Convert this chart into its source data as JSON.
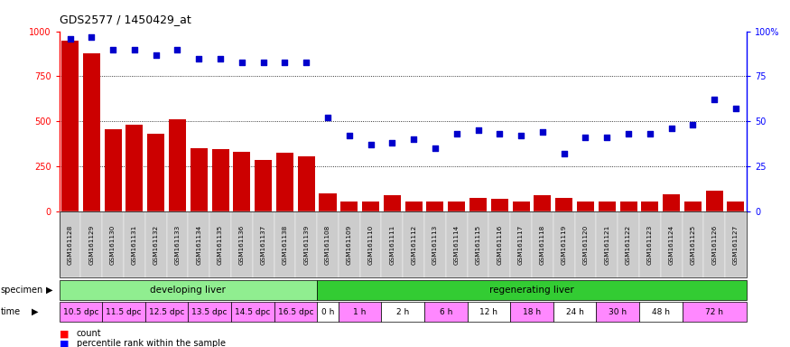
{
  "title": "GDS2577 / 1450429_at",
  "samples": [
    "GSM161128",
    "GSM161129",
    "GSM161130",
    "GSM161131",
    "GSM161132",
    "GSM161133",
    "GSM161134",
    "GSM161135",
    "GSM161136",
    "GSM161137",
    "GSM161138",
    "GSM161139",
    "GSM161108",
    "GSM161109",
    "GSM161110",
    "GSM161111",
    "GSM161112",
    "GSM161113",
    "GSM161114",
    "GSM161115",
    "GSM161116",
    "GSM161117",
    "GSM161118",
    "GSM161119",
    "GSM161120",
    "GSM161121",
    "GSM161122",
    "GSM161123",
    "GSM161124",
    "GSM161125",
    "GSM161126",
    "GSM161127"
  ],
  "counts": [
    950,
    880,
    455,
    480,
    430,
    510,
    350,
    345,
    330,
    285,
    325,
    305,
    100,
    55,
    55,
    90,
    55,
    55,
    55,
    75,
    70,
    55,
    90,
    75,
    55,
    55,
    55,
    55,
    95,
    55,
    115,
    55
  ],
  "percentile": [
    96,
    97,
    90,
    90,
    87,
    90,
    85,
    85,
    83,
    83,
    83,
    83,
    52,
    42,
    37,
    38,
    40,
    35,
    43,
    45,
    43,
    42,
    44,
    32,
    41,
    41,
    43,
    43,
    46,
    48,
    62,
    57
  ],
  "specimen_groups": [
    {
      "label": "developing liver",
      "start": 0,
      "end": 12,
      "color": "#90EE90"
    },
    {
      "label": "regenerating liver",
      "start": 12,
      "end": 32,
      "color": "#33CC33"
    }
  ],
  "time_labels": [
    {
      "label": "10.5 dpc",
      "start": 0,
      "end": 2,
      "color": "#FF88FF"
    },
    {
      "label": "11.5 dpc",
      "start": 2,
      "end": 4,
      "color": "#FF88FF"
    },
    {
      "label": "12.5 dpc",
      "start": 4,
      "end": 6,
      "color": "#FF88FF"
    },
    {
      "label": "13.5 dpc",
      "start": 6,
      "end": 8,
      "color": "#FF88FF"
    },
    {
      "label": "14.5 dpc",
      "start": 8,
      "end": 10,
      "color": "#FF88FF"
    },
    {
      "label": "16.5 dpc",
      "start": 10,
      "end": 12,
      "color": "#FF88FF"
    },
    {
      "label": "0 h",
      "start": 12,
      "end": 13,
      "color": "#FFFFFF"
    },
    {
      "label": "1 h",
      "start": 13,
      "end": 15,
      "color": "#FF88FF"
    },
    {
      "label": "2 h",
      "start": 15,
      "end": 17,
      "color": "#FFFFFF"
    },
    {
      "label": "6 h",
      "start": 17,
      "end": 19,
      "color": "#FF88FF"
    },
    {
      "label": "12 h",
      "start": 19,
      "end": 21,
      "color": "#FFFFFF"
    },
    {
      "label": "18 h",
      "start": 21,
      "end": 23,
      "color": "#FF88FF"
    },
    {
      "label": "24 h",
      "start": 23,
      "end": 25,
      "color": "#FFFFFF"
    },
    {
      "label": "30 h",
      "start": 25,
      "end": 27,
      "color": "#FF88FF"
    },
    {
      "label": "48 h",
      "start": 27,
      "end": 29,
      "color": "#FFFFFF"
    },
    {
      "label": "72 h",
      "start": 29,
      "end": 32,
      "color": "#FF88FF"
    }
  ],
  "bar_color": "#CC0000",
  "scatter_color": "#0000CC",
  "ylim_left": [
    0,
    1000
  ],
  "ylim_right": [
    0,
    100
  ],
  "yticks_left": [
    0,
    250,
    500,
    750,
    1000
  ],
  "yticks_right": [
    0,
    25,
    50,
    75,
    100
  ],
  "plot_bg_color": "#FFFFFF",
  "xtick_bg_color": "#CCCCCC"
}
